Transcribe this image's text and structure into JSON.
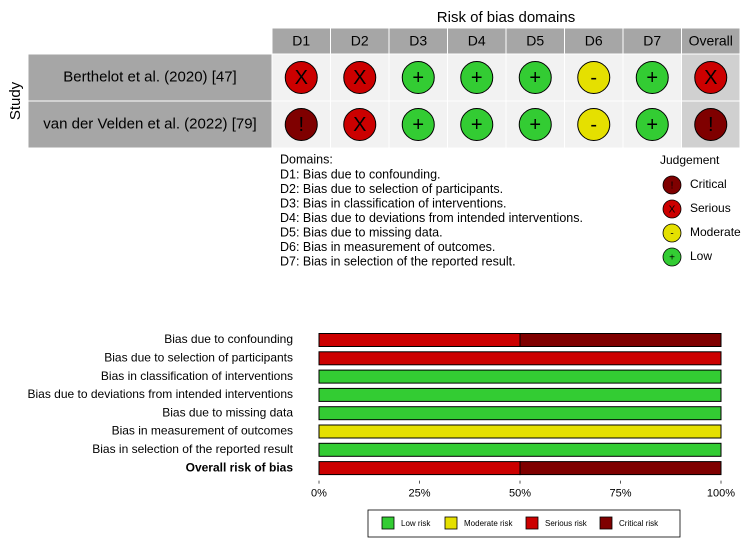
{
  "traffic_light": {
    "title": "Risk of bias domains",
    "y_label": "Study",
    "domains": [
      "D1",
      "D2",
      "D3",
      "D4",
      "D5",
      "D6",
      "D7",
      "Overall"
    ],
    "studies": [
      {
        "name": "Berthelot et al. (2020) [47]",
        "judgements": [
          "X",
          "X",
          "+",
          "+",
          "+",
          "-",
          "+",
          "X"
        ]
      },
      {
        "name": "van der Velden et al. (2022) [79]",
        "judgements": [
          "!",
          "X",
          "+",
          "+",
          "+",
          "-",
          "+",
          "!"
        ]
      }
    ],
    "domains_note": {
      "heading": "Domains:",
      "lines": [
        "D1: Bias due to confounding.",
        "D2: Bias due to selection of participants.",
        "D3: Bias in classification of interventions.",
        "D4: Bias due to deviations from intended interventions.",
        "D5: Bias due to missing data.",
        "D6: Bias in measurement of outcomes.",
        "D7: Bias in selection of the reported result."
      ]
    },
    "legend": {
      "title": "Judgement",
      "items": [
        {
          "label": "Critical",
          "symbol": "!",
          "color": "#7f0000"
        },
        {
          "label": "Serious",
          "symbol": "X",
          "color": "#cc0000"
        },
        {
          "label": "Moderate",
          "symbol": "-",
          "color": "#e5e000"
        },
        {
          "label": "Low",
          "symbol": "+",
          "color": "#33cc33"
        }
      ]
    }
  },
  "chart_data": {
    "type": "stacked-bar-horizontal",
    "categories": [
      "Bias due to confounding",
      "Bias due to selection of participants",
      "Bias in classification of interventions",
      "Bias due to deviations from intended interventions",
      "Bias due to missing data",
      "Bias in measurement of outcomes",
      "Bias in selection of the reported result",
      "Overall risk of bias"
    ],
    "series": [
      {
        "name": "Low risk",
        "color": "#33cc33",
        "values": [
          0,
          0,
          100,
          100,
          100,
          0,
          100,
          0
        ]
      },
      {
        "name": "Moderate risk",
        "color": "#e5e000",
        "values": [
          0,
          0,
          0,
          0,
          0,
          100,
          0,
          0
        ]
      },
      {
        "name": "Serious risk",
        "color": "#cc0000",
        "values": [
          50,
          100,
          0,
          0,
          0,
          0,
          0,
          50
        ]
      },
      {
        "name": "Critical risk",
        "color": "#7f0000",
        "values": [
          50,
          0,
          0,
          0,
          0,
          0,
          0,
          50
        ]
      }
    ],
    "xlim": [
      0,
      100
    ],
    "xticks": [
      {
        "value": 0,
        "label": "0%"
      },
      {
        "value": 25,
        "label": "25%"
      },
      {
        "value": 50,
        "label": "50%"
      },
      {
        "value": 75,
        "label": "75%"
      },
      {
        "value": 100,
        "label": "100%"
      }
    ]
  }
}
